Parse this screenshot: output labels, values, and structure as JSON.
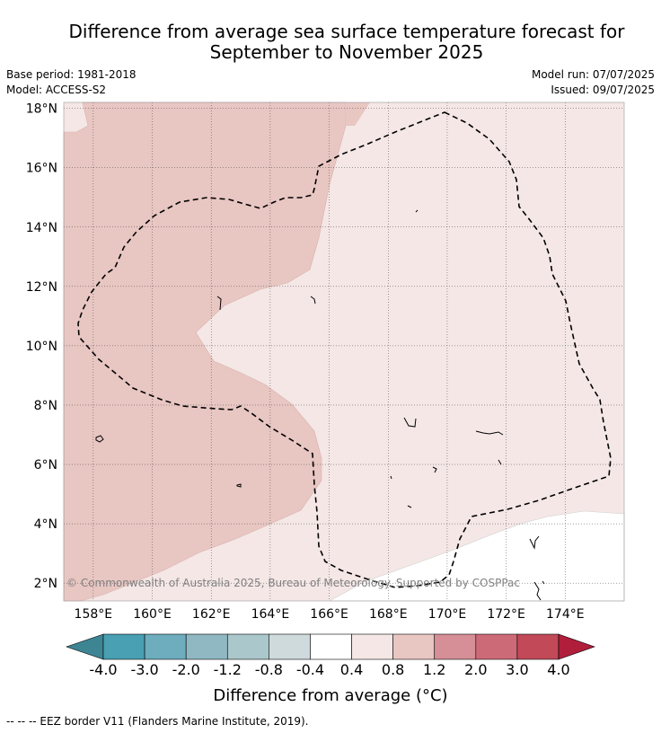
{
  "title_line1": "Difference from average sea surface temperature forecast for",
  "title_line2": "September to November 2025",
  "base_period": "Base period: 1981-2018",
  "model": "Model: ACCESS-S2",
  "model_run": "Model run: 07/07/2025",
  "issued": "Issued: 09/07/2025",
  "copyright": "© Commonwealth of Australia 2025, Bureau of Meteorology. Supported by COSPPac",
  "map": {
    "lon_range": [
      157.0,
      176.0
    ],
    "lat_range": [
      1.4,
      18.2
    ],
    "lon_ticks": [
      "158°E",
      "160°E",
      "162°E",
      "164°E",
      "166°E",
      "168°E",
      "170°E",
      "172°E",
      "174°E"
    ],
    "lon_tick_values": [
      158,
      160,
      162,
      164,
      166,
      168,
      170,
      172,
      174
    ],
    "lat_ticks": [
      "2°N",
      "4°N",
      "6°N",
      "8°N",
      "10°N",
      "12°N",
      "14°N",
      "16°N",
      "18°N"
    ],
    "lat_tick_values": [
      2,
      4,
      6,
      8,
      10,
      12,
      14,
      16,
      18
    ],
    "fill_colors": {
      "band_0_4_to_0_8": "#f4e7e6",
      "band_0_8_to_1_2": "#e8c6c2",
      "band_neg0_4_to_0_4": "#ffffff"
    },
    "eez_border_style": "dashed black"
  },
  "colorbar": {
    "labels": [
      "-4.0",
      "-3.0",
      "-2.0",
      "-1.2",
      "-0.8",
      "-0.4",
      "0.4",
      "0.8",
      "1.2",
      "2.0",
      "3.0",
      "4.0"
    ],
    "colors": [
      "#3e8594",
      "#48a0b2",
      "#6dadbe",
      "#8fb8c3",
      "#aac7cb",
      "#cfdadc",
      "#ffffff",
      "#f4e7e6",
      "#e8c6c2",
      "#d68f97",
      "#cd6a77",
      "#c14958",
      "#b01e3c"
    ],
    "title": "Difference from average (°C)"
  },
  "footer": "--  --  -- EEZ border V11 (Flanders Marine Institute, 2019)."
}
